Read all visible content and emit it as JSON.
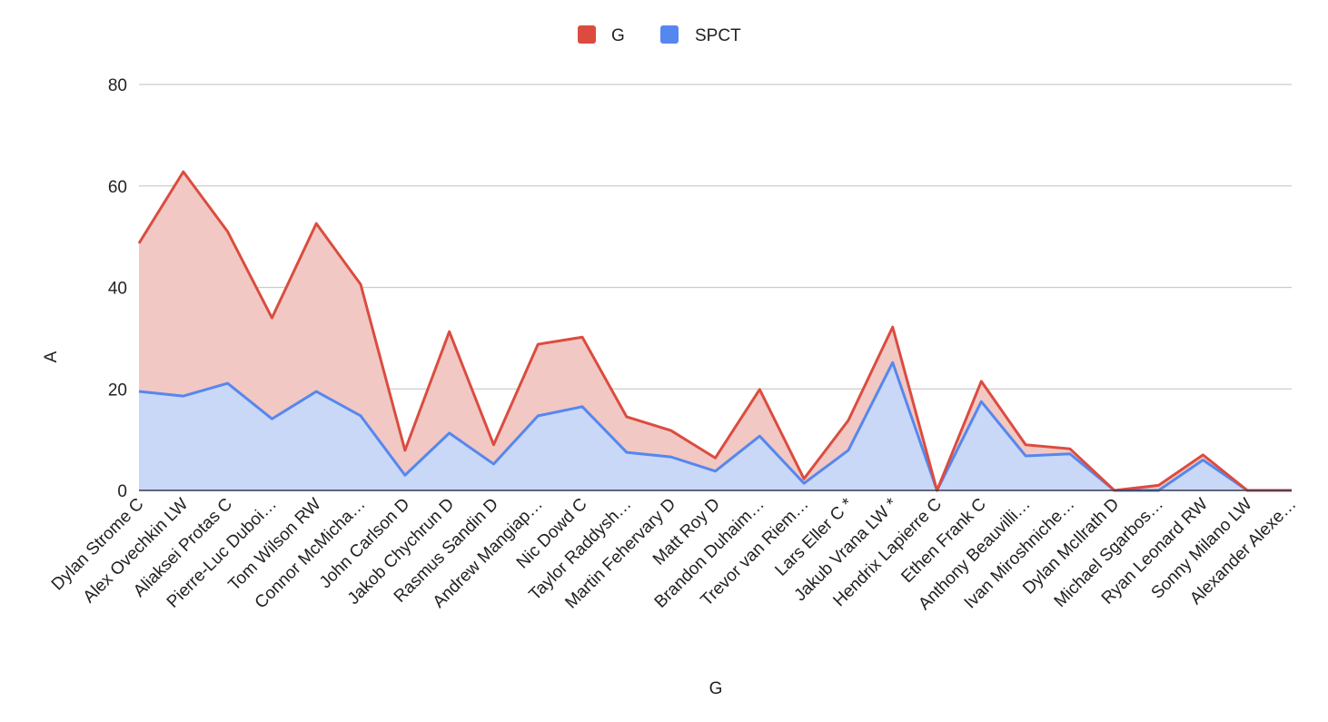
{
  "chart_data": {
    "type": "area",
    "stacked": true,
    "title": "",
    "xlabel": "G",
    "ylabel": "A",
    "ylim": [
      0,
      80
    ],
    "yticks": [
      0,
      20,
      40,
      60,
      80
    ],
    "grid": true,
    "legend_position": "top",
    "categories": [
      "Dylan Strome C",
      "Alex Ovechkin LW",
      "Aliaksei Protas C",
      "Pierre-Luc Duboi…",
      "Tom Wilson RW",
      "Connor McMicha…",
      "John Carlson D",
      "Jakob Chychrun D",
      "Rasmus Sandin D",
      "Andrew Mangiap…",
      "Nic Dowd C",
      "Taylor Raddysh…",
      "Martin Fehervary D",
      "Matt Roy D",
      "Brandon Duhaim…",
      "Trevor van Riem…",
      "Lars Eller C *",
      "Jakub Vrana LW *",
      "Hendrix Lapierre C",
      "Ethen Frank C",
      "Anthony Beauvilli…",
      "Ivan Miroshniche…",
      "Dylan McIlrath D",
      "Michael Sgarbos…",
      "Ryan Leonard RW",
      "Sonny Milano LW",
      "Alexander Alexe…"
    ],
    "series": [
      {
        "name": "G",
        "color": "#db4c3f",
        "fill": "#f1c8c4",
        "values": [
          29.2,
          44.2,
          29.9,
          19.9,
          33.1,
          25.9,
          4.9,
          20,
          3.8,
          14.1,
          13.7,
          7,
          5.2,
          2.6,
          9.2,
          0.9,
          5.9,
          7,
          0,
          4,
          2.2,
          1,
          0,
          1,
          1,
          0,
          0
        ]
      },
      {
        "name": "SPCT",
        "color": "#5687ee",
        "fill": "#c9d8f7",
        "values": [
          19.5,
          18.6,
          21.1,
          14.1,
          19.5,
          14.7,
          3,
          11.3,
          5.2,
          14.7,
          16.5,
          7.5,
          6.6,
          3.8,
          10.7,
          1.4,
          7.9,
          25.2,
          0,
          17.5,
          6.8,
          7.2,
          0,
          0,
          6,
          0,
          0
        ]
      }
    ]
  }
}
